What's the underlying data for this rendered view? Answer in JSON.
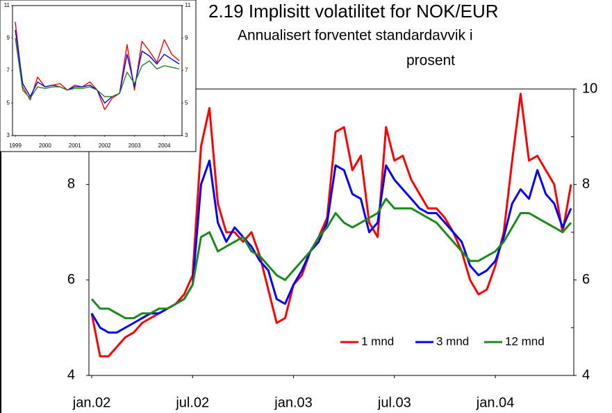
{
  "chart_data": [
    {
      "type": "line",
      "title": "2.19 Implisitt volatilitet for NOK/EUR",
      "subtitle": [
        "Annualisert forventet standardavvik i",
        "prosent"
      ],
      "categories": [
        "jan.02",
        null,
        null,
        null,
        null,
        null,
        null,
        null,
        null,
        null,
        null,
        null,
        "jul.02",
        null,
        null,
        null,
        null,
        null,
        null,
        null,
        null,
        null,
        null,
        null,
        "jan.03",
        null,
        null,
        null,
        null,
        null,
        null,
        null,
        null,
        null,
        null,
        null,
        "jul.03",
        null,
        null,
        null,
        null,
        null,
        null,
        null,
        null,
        null,
        null,
        null,
        "jan.04",
        null,
        null,
        null,
        null,
        null,
        null,
        null,
        null,
        null
      ],
      "series": [
        {
          "name": "1 mnd",
          "color": "#ff0000",
          "values": [
            5.3,
            4.4,
            4.4,
            4.6,
            4.8,
            4.9,
            5.1,
            5.2,
            5.3,
            5.4,
            5.5,
            5.7,
            6.1,
            8.8,
            9.6,
            7.6,
            7.0,
            7.0,
            6.8,
            7.0,
            6.5,
            5.8,
            5.1,
            5.2,
            5.9,
            6.1,
            6.6,
            6.9,
            7.3,
            9.1,
            9.2,
            8.3,
            8.6,
            7.2,
            6.9,
            9.2,
            8.5,
            8.6,
            8.1,
            7.8,
            7.5,
            7.5,
            7.3,
            7.0,
            6.6,
            6.0,
            5.7,
            5.8,
            6.3,
            7.0,
            8.5,
            9.9,
            8.5,
            8.6,
            8.3,
            8.0,
            7.0,
            8.0
          ]
        },
        {
          "name": "3 mnd",
          "color": "#0000ff",
          "values": [
            5.3,
            5.0,
            4.9,
            4.9,
            5.0,
            5.1,
            5.2,
            5.3,
            5.3,
            5.4,
            5.5,
            5.6,
            5.9,
            8.0,
            8.5,
            7.2,
            6.8,
            7.1,
            6.9,
            6.7,
            6.4,
            6.2,
            5.6,
            5.5,
            5.9,
            6.2,
            6.6,
            6.8,
            7.2,
            8.4,
            8.3,
            7.8,
            7.7,
            7.0,
            7.2,
            8.4,
            8.1,
            7.9,
            7.7,
            7.5,
            7.4,
            7.4,
            7.2,
            7.0,
            6.8,
            6.3,
            6.1,
            6.2,
            6.4,
            6.9,
            7.6,
            7.9,
            7.7,
            8.3,
            7.8,
            7.6,
            7.1,
            7.5
          ]
        },
        {
          "name": "12 mnd",
          "color": "#1a8a1a",
          "values": [
            5.6,
            5.4,
            5.4,
            5.3,
            5.2,
            5.2,
            5.3,
            5.3,
            5.4,
            5.4,
            5.5,
            5.6,
            5.9,
            6.9,
            7.0,
            6.6,
            6.7,
            6.8,
            6.9,
            6.6,
            6.5,
            6.3,
            6.1,
            6.0,
            6.2,
            6.4,
            6.6,
            6.9,
            7.1,
            7.4,
            7.2,
            7.1,
            7.2,
            7.3,
            7.4,
            7.7,
            7.5,
            7.5,
            7.5,
            7.4,
            7.3,
            7.2,
            7.0,
            6.8,
            6.6,
            6.4,
            6.4,
            6.5,
            6.6,
            6.8,
            7.1,
            7.4,
            7.4,
            7.3,
            7.2,
            7.1,
            7.0,
            7.2
          ]
        }
      ],
      "ylim": [
        4,
        10
      ],
      "yticks": [
        4,
        6,
        8,
        10
      ],
      "y2lim": [
        4,
        10
      ],
      "y2ticks": [
        4,
        6,
        8,
        10
      ],
      "y2minor": [
        5,
        7,
        9
      ],
      "legend": "lower right"
    },
    {
      "type": "line",
      "categories": [
        "1999",
        null,
        null,
        null,
        "2000",
        null,
        null,
        null,
        "2001",
        null,
        null,
        null,
        "2002",
        null,
        null,
        null,
        "2003",
        null,
        null,
        null,
        "2004",
        null,
        null
      ],
      "series": [
        {
          "name": "1 mnd",
          "color": "#ff0000",
          "values": [
            10,
            6.0,
            5.2,
            6.6,
            6.0,
            6.1,
            6.2,
            5.8,
            6.1,
            6.0,
            6.3,
            5.8,
            4.6,
            5.3,
            5.6,
            8.6,
            5.8,
            8.8,
            8.2,
            7.5,
            8.9,
            8.0,
            7.6
          ]
        },
        {
          "name": "3 mnd",
          "color": "#0000ff",
          "values": [
            9.5,
            6.2,
            5.4,
            6.3,
            6.0,
            6.1,
            6.0,
            5.8,
            6.0,
            6.0,
            6.1,
            5.8,
            5.0,
            5.4,
            5.6,
            8.0,
            6.0,
            8.2,
            7.9,
            7.4,
            8.0,
            7.7,
            7.4
          ]
        },
        {
          "name": "12 mnd",
          "color": "#1a8a1a",
          "values": [
            9.0,
            5.8,
            5.3,
            6.0,
            5.9,
            6.0,
            6.0,
            5.8,
            5.9,
            5.9,
            6.0,
            5.8,
            5.4,
            5.4,
            5.6,
            6.9,
            6.2,
            7.3,
            7.6,
            7.1,
            7.3,
            7.2,
            7.1
          ]
        }
      ],
      "ylim": [
        3,
        11
      ],
      "yticks": [
        3,
        5,
        7,
        9,
        11
      ],
      "y2lim": [
        3,
        11
      ],
      "y2ticks": [
        3,
        5,
        7,
        9,
        11
      ]
    }
  ]
}
